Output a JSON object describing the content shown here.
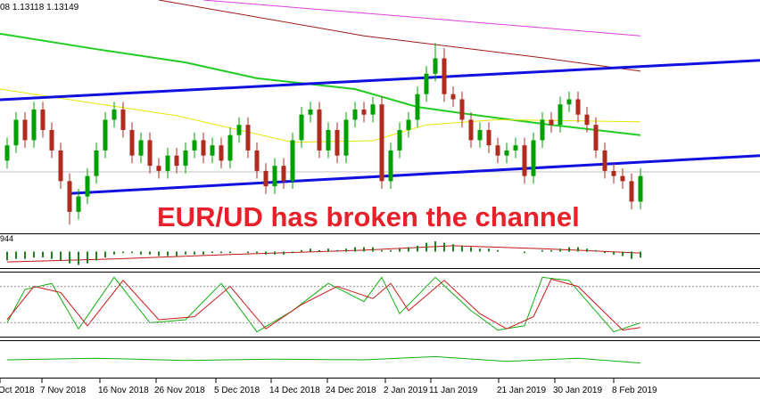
{
  "chart_data": {
    "type": "candlestick",
    "header": "08 1.13118 1.13149",
    "annotation": "EUR/UD has broken the channel",
    "x_labels": [
      "Oct 2018",
      "7 Nov 2018",
      "16 Nov 2018",
      "26 Nov 2018",
      "5 Dec 2018",
      "14 Dec 2018",
      "24 Dec 2018",
      "2 Jan 2019",
      "11 Jan 2019",
      "21 Jan 2019",
      "30 Jan 2019",
      "8 Feb 2019"
    ],
    "ylim": [
      1.1198,
      1.1654
    ],
    "up_color": "#00a000",
    "down_color": "#b02a1e",
    "price_line": 1.1318,
    "open": [
      1.134,
      1.137,
      1.142,
      1.138,
      1.144,
      1.14,
      1.136,
      1.13,
      1.124,
      1.127,
      1.131,
      1.136,
      1.142,
      1.144,
      1.14,
      1.135,
      1.138,
      1.133,
      1.132,
      1.135,
      1.133,
      1.136,
      1.138,
      1.135,
      1.137,
      1.134,
      1.139,
      1.141,
      1.136,
      1.132,
      1.129,
      1.133,
      1.13,
      1.138,
      1.143,
      1.144,
      1.136,
      1.14,
      1.135,
      1.142,
      1.144,
      1.143,
      1.145,
      1.13,
      1.136,
      1.14,
      1.142,
      1.147,
      1.151,
      1.154,
      1.147,
      1.146,
      1.142,
      1.138,
      1.14,
      1.137,
      1.135,
      1.136,
      1.137,
      1.131,
      1.138,
      1.142,
      1.141,
      1.145,
      1.146,
      1.143,
      1.141,
      1.136,
      1.132,
      1.131,
      1.13,
      1.126
    ],
    "high": [
      1.1385,
      1.1435,
      1.1435,
      1.1455,
      1.1455,
      1.1415,
      1.1375,
      1.1315,
      1.1285,
      1.1325,
      1.1375,
      1.1435,
      1.1455,
      1.1455,
      1.1415,
      1.1395,
      1.1395,
      1.1345,
      1.1365,
      1.1365,
      1.1375,
      1.1395,
      1.1395,
      1.1385,
      1.1385,
      1.1405,
      1.1425,
      1.1425,
      1.1375,
      1.1335,
      1.1345,
      1.1345,
      1.1395,
      1.1445,
      1.1455,
      1.1455,
      1.1415,
      1.1415,
      1.1435,
      1.1455,
      1.1455,
      1.1465,
      1.1465,
      1.1375,
      1.1415,
      1.1435,
      1.1485,
      1.1525,
      1.157,
      1.156,
      1.1485,
      1.1475,
      1.1435,
      1.1415,
      1.1415,
      1.1385,
      1.1375,
      1.1385,
      1.1385,
      1.1395,
      1.1435,
      1.1435,
      1.1465,
      1.1475,
      1.1475,
      1.1445,
      1.1425,
      1.1375,
      1.1335,
      1.1325,
      1.1315,
      1.1325
    ],
    "low": [
      1.1325,
      1.1355,
      1.1365,
      1.1365,
      1.1385,
      1.1345,
      1.1285,
      1.1215,
      1.1225,
      1.1255,
      1.1295,
      1.1345,
      1.1405,
      1.1385,
      1.1335,
      1.1335,
      1.1315,
      1.1305,
      1.1305,
      1.1315,
      1.1315,
      1.1345,
      1.1335,
      1.1335,
      1.1325,
      1.1325,
      1.1375,
      1.1345,
      1.1305,
      1.1275,
      1.1275,
      1.1285,
      1.1285,
      1.1365,
      1.1415,
      1.1345,
      1.1345,
      1.1335,
      1.1335,
      1.1405,
      1.1415,
      1.1415,
      1.1285,
      1.1285,
      1.1345,
      1.1385,
      1.1405,
      1.1455,
      1.1495,
      1.1455,
      1.1445,
      1.1405,
      1.1365,
      1.1365,
      1.1355,
      1.1335,
      1.1335,
      1.1345,
      1.1295,
      1.1295,
      1.1365,
      1.1395,
      1.1395,
      1.1435,
      1.1415,
      1.1395,
      1.1345,
      1.1305,
      1.1295,
      1.1285,
      1.1245,
      1.1245
    ],
    "close": [
      1.137,
      1.142,
      1.138,
      1.144,
      1.14,
      1.136,
      1.13,
      1.124,
      1.127,
      1.131,
      1.136,
      1.142,
      1.144,
      1.14,
      1.135,
      1.138,
      1.133,
      1.132,
      1.135,
      1.133,
      1.136,
      1.138,
      1.135,
      1.137,
      1.134,
      1.139,
      1.141,
      1.136,
      1.132,
      1.129,
      1.133,
      1.13,
      1.138,
      1.143,
      1.144,
      1.136,
      1.14,
      1.135,
      1.142,
      1.144,
      1.143,
      1.145,
      1.13,
      1.136,
      1.14,
      1.142,
      1.147,
      1.151,
      1.154,
      1.147,
      1.146,
      1.142,
      1.138,
      1.14,
      1.137,
      1.135,
      1.136,
      1.137,
      1.131,
      1.138,
      1.142,
      1.141,
      1.145,
      1.146,
      1.143,
      1.141,
      1.136,
      1.132,
      1.131,
      1.13,
      1.126,
      1.131
    ],
    "overlays": [
      {
        "color": "#e040e0",
        "width": 1,
        "x": [
          22,
          71
        ],
        "values": [
          1.1654,
          1.1584
        ]
      },
      {
        "color": "#a01818",
        "width": 1,
        "x": [
          17,
          40,
          60,
          71
        ],
        "values": [
          1.1654,
          1.1584,
          1.1541,
          1.1515
        ]
      },
      {
        "color": "#22cc22",
        "width": 2,
        "x": [
          -0.8,
          10,
          20,
          28,
          39,
          46,
          53,
          61,
          71
        ],
        "values": [
          1.1588,
          1.1558,
          1.1532,
          1.1501,
          1.148,
          1.1445,
          1.1428,
          1.141,
          1.139
        ]
      },
      {
        "color": "#e6e600",
        "width": 1,
        "x": [
          -0.8,
          19,
          32,
          41,
          47,
          55,
          71
        ],
        "values": [
          1.148,
          1.1428,
          1.1376,
          1.1379,
          1.141,
          1.142,
          1.1416
        ]
      },
      {
        "color": "#1010e0",
        "width": 3,
        "x": [
          -0.8,
          84.4
        ],
        "values": [
          1.1459,
          1.1536
        ]
      },
      {
        "color": "#1010e0",
        "width": 3,
        "x": [
          7,
          84.4
        ],
        "values": [
          1.1276,
          1.135
        ]
      }
    ],
    "panels": [
      {
        "type": "macd",
        "label": "944",
        "ylim": [
          -10,
          10
        ],
        "hist_color": "#208020",
        "histogram": [
          -6,
          -5,
          -5,
          -4,
          -4,
          -5,
          -6,
          -8,
          -9,
          -8,
          -6,
          -4,
          -2,
          -1,
          -1,
          -2,
          -2,
          -3,
          -3,
          -3,
          -2,
          -2,
          -2,
          -1,
          -1,
          -1,
          0,
          -1,
          -1,
          -2,
          -2,
          -2,
          -1,
          1,
          2,
          1,
          2,
          1,
          2,
          3,
          3,
          3,
          1,
          1,
          2,
          3,
          4,
          6,
          7,
          6,
          5,
          4,
          3,
          2,
          2,
          1,
          0,
          0,
          -1,
          0,
          1,
          1,
          2,
          3,
          3,
          2,
          1,
          -1,
          -2,
          -3,
          -5,
          -4
        ],
        "lines": [
          {
            "color": "#c01818",
            "x": [
              0,
              12,
              25,
              40,
              50,
              60,
              71
            ],
            "values": [
              -7,
              -5,
              -2,
              1,
              4,
              2,
              -1
            ]
          }
        ]
      },
      {
        "type": "oscillator",
        "ylim": [
          0,
          100
        ],
        "levels": [
          20,
          80
        ],
        "lines": [
          {
            "color": "#10b010",
            "x": [
              0,
              2,
              5,
              8,
              12,
              16,
              20,
              24,
              28,
              32,
              36,
              40,
              42,
              44,
              48,
              52,
              55,
              58,
              60,
              63,
              68,
              71
            ],
            "values": [
              20,
              75,
              85,
              10,
              95,
              20,
              25,
              85,
              5,
              40,
              85,
              55,
              95,
              35,
              95,
              40,
              8,
              15,
              95,
              90,
              5,
              20
            ]
          },
          {
            "color": "#d01818",
            "x": [
              0,
              3,
              6,
              9,
              13,
              17,
              21,
              25,
              29,
              33,
              37,
              41,
              43,
              45,
              49,
              53,
              56,
              59,
              61,
              64,
              69,
              71
            ],
            "values": [
              25,
              80,
              70,
              15,
              90,
              25,
              30,
              80,
              10,
              50,
              80,
              60,
              85,
              40,
              90,
              35,
              10,
              30,
              92,
              80,
              8,
              12
            ]
          }
        ]
      },
      {
        "type": "oscillator",
        "ylim": [
          0,
          100
        ],
        "levels": [],
        "lines": [
          {
            "color": "#10b010",
            "x": [
              0,
              10,
              20,
              30,
              40,
              48,
              56,
              64,
              71
            ],
            "values": [
              50,
              55,
              48,
              52,
              50,
              60,
              45,
              55,
              40
            ]
          }
        ]
      }
    ]
  }
}
